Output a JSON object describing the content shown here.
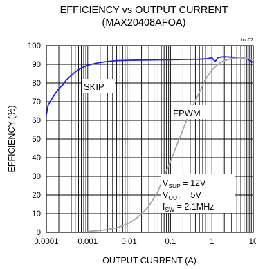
{
  "chart_data": {
    "type": "line",
    "title": "EFFICIENCY vs OUTPUT CURRENT",
    "subtitle": "(MAX20408AFOA)",
    "tag": "toc02",
    "xlabel": "OUTPUT CURRENT (A)",
    "ylabel": "EFFICIENCY (%)",
    "xscale": "log",
    "xlim": [
      0.0001,
      10
    ],
    "ylim": [
      0,
      100
    ],
    "xticks": [
      "0.0001",
      "0.001",
      "0.01",
      "0.1",
      "1",
      "10"
    ],
    "yticks": [
      "0",
      "10",
      "20",
      "30",
      "40",
      "50",
      "60",
      "70",
      "80",
      "90",
      "100"
    ],
    "grid": true,
    "series": [
      {
        "name": "SKIP",
        "color": "#1a1aff",
        "x": [
          0.0001,
          0.00011,
          0.00013,
          0.00016,
          0.0002,
          0.00025,
          0.0003,
          0.0004,
          0.0005,
          0.0007,
          0.001,
          0.0015,
          0.002,
          0.003,
          0.005,
          0.01,
          0.02,
          0.05,
          0.1,
          0.2,
          0.5,
          0.8,
          1.0,
          1.2,
          1.4,
          1.6,
          2.0,
          3.0,
          5.0,
          7.0,
          10.0
        ],
        "y": [
          63,
          68,
          71,
          74,
          77,
          79,
          81.5,
          84,
          86,
          88,
          89.5,
          90.5,
          91,
          91.5,
          92,
          92.2,
          92.3,
          92.4,
          92.5,
          92.6,
          92.7,
          93,
          93.5,
          91.5,
          93.5,
          93.8,
          94,
          93.8,
          93.5,
          93,
          91
        ]
      },
      {
        "name": "FPWM",
        "color": "#a6a6a6",
        "x": [
          0.001,
          0.002,
          0.003,
          0.005,
          0.007,
          0.01,
          0.015,
          0.02,
          0.03,
          0.05,
          0.07,
          0.1,
          0.15,
          0.2,
          0.3,
          0.5,
          0.7,
          1.0,
          1.5,
          2.0,
          3.0,
          5.0,
          7.0,
          10.0
        ],
        "y": [
          0.5,
          1,
          1.5,
          2.5,
          3.5,
          5,
          7.5,
          10,
          14,
          22,
          30,
          38,
          48,
          55,
          65,
          75,
          82,
          87,
          90.5,
          92,
          93,
          93.5,
          93.2,
          92.5
        ]
      }
    ],
    "labels": {
      "skip": "SKIP",
      "fpwm": "FPWM"
    },
    "conditions": [
      {
        "main": "V",
        "sub": "SUP",
        "rest": " = 12V"
      },
      {
        "main": "V",
        "sub": "OUT",
        "rest": " = 5V"
      },
      {
        "main": "f",
        "sub": "SW",
        "rest": " = 2.1MHz"
      }
    ]
  }
}
